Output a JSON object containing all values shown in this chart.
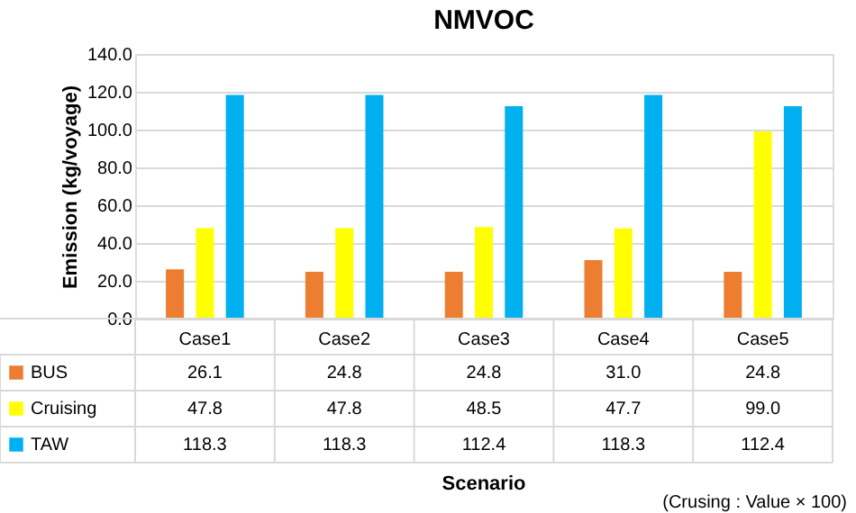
{
  "chart_data": {
    "type": "bar",
    "title": "NMVOC",
    "ylabel": "Emission (kg/voyage)",
    "categories": [
      "Case1",
      "Case2",
      "Case3",
      "Case4",
      "Case5"
    ],
    "series": [
      {
        "name": "BUS",
        "color": "#ed7d31",
        "values": [
          26.1,
          24.8,
          24.8,
          31.0,
          24.8
        ],
        "value_labels": [
          "26.1",
          "24.8",
          "24.8",
          "31.0",
          "24.8"
        ]
      },
      {
        "name": "Cruising",
        "color": "#ffff00",
        "values": [
          47.8,
          47.8,
          48.5,
          47.7,
          99.0
        ],
        "value_labels": [
          "47.8",
          "47.8",
          "48.5",
          "47.7",
          "99.0"
        ]
      },
      {
        "name": "TAW",
        "color": "#00b0f0",
        "values": [
          118.3,
          118.3,
          112.4,
          118.3,
          112.4
        ],
        "value_labels": [
          "118.3",
          "118.3",
          "112.4",
          "118.3",
          "112.4"
        ]
      }
    ],
    "ylim": [
      0,
      140
    ],
    "yticks": [
      {
        "value": 0,
        "label": "0.0"
      },
      {
        "value": 20,
        "label": "20.0"
      },
      {
        "value": 40,
        "label": "40.0"
      },
      {
        "value": 60,
        "label": "60.0"
      },
      {
        "value": 80,
        "label": "80.0"
      },
      {
        "value": 100,
        "label": "100.0"
      },
      {
        "value": 120,
        "label": "120.0"
      },
      {
        "value": 140,
        "label": "140.0"
      }
    ],
    "grid": "y",
    "legend": "bottom",
    "annotations": [
      "Scenario",
      "(Crusing : Value × 100)"
    ]
  }
}
